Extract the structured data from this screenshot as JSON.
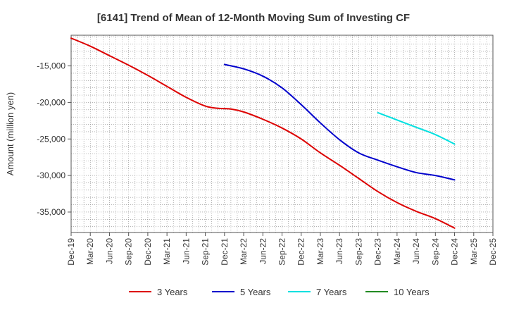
{
  "chart_data": {
    "type": "line",
    "title": "[6141]  Trend of Mean of 12-Month Moving Sum of Investing CF",
    "xlabel": "",
    "ylabel": "Amount (million yen)",
    "ylim": [
      -37800,
      -10800
    ],
    "y_ticks": [
      -15000,
      -20000,
      -25000,
      -30000,
      -35000
    ],
    "y_tick_labels": [
      "-15,000",
      "-20,000",
      "-25,000",
      "-30,000",
      "-35,000"
    ],
    "x_range": [
      0,
      66
    ],
    "x_ticks": [
      {
        "index": 0,
        "label": "Dec-19"
      },
      {
        "index": 3,
        "label": "Mar-20"
      },
      {
        "index": 6,
        "label": "Jun-20"
      },
      {
        "index": 9,
        "label": "Sep-20"
      },
      {
        "index": 12,
        "label": "Dec-20"
      },
      {
        "index": 15,
        "label": "Mar-21"
      },
      {
        "index": 18,
        "label": "Jun-21"
      },
      {
        "index": 21,
        "label": "Sep-21"
      },
      {
        "index": 24,
        "label": "Dec-21"
      },
      {
        "index": 27,
        "label": "Mar-22"
      },
      {
        "index": 30,
        "label": "Jun-22"
      },
      {
        "index": 33,
        "label": "Sep-22"
      },
      {
        "index": 36,
        "label": "Dec-22"
      },
      {
        "index": 39,
        "label": "Mar-23"
      },
      {
        "index": 42,
        "label": "Jun-23"
      },
      {
        "index": 45,
        "label": "Sep-23"
      },
      {
        "index": 48,
        "label": "Dec-23"
      },
      {
        "index": 51,
        "label": "Mar-24"
      },
      {
        "index": 54,
        "label": "Jun-24"
      },
      {
        "index": 57,
        "label": "Sep-24"
      },
      {
        "index": 60,
        "label": "Dec-24"
      },
      {
        "index": 63,
        "label": "Mar-25"
      },
      {
        "index": 66,
        "label": "Dec-25"
      }
    ],
    "grid": true,
    "legend_position": "bottom",
    "series": [
      {
        "name": "3 Years",
        "color": "#dd0000",
        "points": [
          [
            0,
            -11200
          ],
          [
            3,
            -12300
          ],
          [
            6,
            -13600
          ],
          [
            9,
            -14900
          ],
          [
            12,
            -16300
          ],
          [
            15,
            -17800
          ],
          [
            18,
            -19300
          ],
          [
            21,
            -20500
          ],
          [
            23,
            -20800
          ],
          [
            25,
            -20900
          ],
          [
            27,
            -21300
          ],
          [
            30,
            -22300
          ],
          [
            33,
            -23500
          ],
          [
            36,
            -25000
          ],
          [
            39,
            -26900
          ],
          [
            42,
            -28600
          ],
          [
            45,
            -30400
          ],
          [
            48,
            -32200
          ],
          [
            51,
            -33700
          ],
          [
            54,
            -34900
          ],
          [
            57,
            -35900
          ],
          [
            60,
            -37200
          ]
        ]
      },
      {
        "name": "5 Years",
        "color": "#0000cc",
        "points": [
          [
            24,
            -14800
          ],
          [
            27,
            -15400
          ],
          [
            30,
            -16400
          ],
          [
            33,
            -18000
          ],
          [
            36,
            -20300
          ],
          [
            39,
            -22800
          ],
          [
            42,
            -25100
          ],
          [
            45,
            -26900
          ],
          [
            48,
            -27900
          ],
          [
            51,
            -28800
          ],
          [
            54,
            -29600
          ],
          [
            57,
            -30000
          ],
          [
            60,
            -30600
          ]
        ]
      },
      {
        "name": "7 Years",
        "color": "#00e0e0",
        "points": [
          [
            48,
            -21400
          ],
          [
            51,
            -22400
          ],
          [
            54,
            -23400
          ],
          [
            57,
            -24400
          ],
          [
            60,
            -25700
          ]
        ]
      },
      {
        "name": "10 Years",
        "color": "#228B22",
        "points": []
      }
    ]
  }
}
